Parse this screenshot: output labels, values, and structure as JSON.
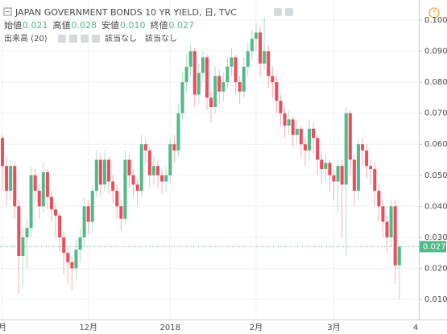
{
  "chart_data": {
    "type": "candlestick",
    "title": "JAPAN GOVERNMENT BONDS 10 YR YIELD, 日, TVC",
    "legend": [
      {
        "label": "始値",
        "value": 0.021
      },
      {
        "label": "高値",
        "value": 0.028
      },
      {
        "label": "安値",
        "value": {
          "value": 0.01,
          "label": "0.010"
        }
      },
      {
        "label": "終値",
        "value": 0.027
      }
    ],
    "indicator": {
      "name": "出来高 (20)",
      "values": [
        "該当なし",
        "該当なし"
      ]
    },
    "up_color": "#53b987",
    "down_color": "#eb4d5c",
    "categories": [
      "月",
      null,
      null,
      null,
      null,
      null,
      null,
      null,
      null,
      null,
      null,
      null,
      null,
      null,
      null,
      null,
      null,
      null,
      null,
      null,
      null,
      "12月",
      null,
      null,
      null,
      null,
      null,
      null,
      null,
      null,
      null,
      null,
      null,
      null,
      null,
      null,
      null,
      null,
      null,
      null,
      null,
      "2018",
      null,
      null,
      null,
      null,
      null,
      null,
      null,
      null,
      null,
      null,
      null,
      null,
      null,
      null,
      null,
      null,
      null,
      null,
      null,
      null,
      "2月",
      null,
      null,
      null,
      null,
      null,
      null,
      null,
      null,
      null,
      null,
      null,
      null,
      null,
      null,
      null,
      null,
      null,
      null,
      "3月",
      null,
      null,
      null,
      null,
      null,
      null,
      null,
      null,
      null,
      null,
      null,
      null,
      null,
      null,
      null,
      null
    ],
    "x_edge_label": "4",
    "open": [
      0.062,
      0.053,
      0.045,
      0.053,
      0.04,
      0.024,
      0.03,
      0.033,
      0.05,
      0.045,
      0.04,
      0.051,
      0.043,
      0.039,
      0.037,
      0.03,
      0.025,
      0.022,
      0.02,
      0.026,
      0.03,
      0.04,
      0.035,
      0.045,
      0.055,
      0.047,
      0.055,
      0.048,
      0.045,
      0.04,
      0.036,
      0.055,
      0.05,
      0.047,
      0.045,
      0.06,
      0.058,
      0.05,
      0.053,
      0.05,
      0.048,
      0.05,
      0.06,
      0.058,
      0.07,
      0.08,
      0.085,
      0.09,
      0.076,
      0.083,
      0.088,
      0.075,
      0.072,
      0.082,
      0.077,
      0.08,
      0.085,
      0.088,
      0.08,
      0.077,
      0.085,
      0.09,
      0.094,
      0.096,
      0.086,
      0.09,
      0.082,
      0.08,
      0.074,
      0.07,
      0.066,
      0.068,
      0.063,
      0.065,
      0.06,
      0.058,
      0.065,
      0.062,
      0.055,
      0.052,
      0.054,
      0.05,
      0.048,
      0.053,
      0.047,
      0.07,
      0.055,
      0.045,
      0.06,
      0.058,
      0.053,
      0.052,
      0.045,
      0.04,
      0.035,
      0.03,
      0.04,
      0.021
    ],
    "high": [
      0.063,
      0.056,
      0.055,
      0.054,
      0.042,
      0.033,
      0.036,
      0.053,
      0.052,
      0.047,
      0.054,
      0.052,
      0.045,
      0.041,
      0.038,
      0.032,
      0.027,
      0.024,
      0.029,
      0.033,
      0.043,
      0.042,
      0.047,
      0.058,
      0.057,
      0.058,
      0.056,
      0.05,
      0.047,
      0.042,
      0.058,
      0.057,
      0.052,
      0.049,
      0.063,
      0.062,
      0.059,
      0.056,
      0.055,
      0.052,
      0.053,
      0.062,
      0.063,
      0.073,
      0.083,
      0.089,
      0.092,
      0.091,
      0.086,
      0.09,
      0.089,
      0.077,
      0.085,
      0.084,
      0.083,
      0.088,
      0.091,
      0.089,
      0.082,
      0.088,
      0.093,
      0.097,
      0.099,
      0.098,
      0.101,
      0.092,
      0.085,
      0.082,
      0.076,
      0.072,
      0.071,
      0.069,
      0.068,
      0.066,
      0.062,
      0.068,
      0.067,
      0.063,
      0.057,
      0.057,
      0.055,
      0.052,
      0.055,
      0.055,
      0.072,
      0.071,
      0.057,
      0.062,
      0.062,
      0.06,
      0.055,
      0.054,
      0.047,
      0.042,
      0.037,
      0.042,
      0.042,
      0.028
    ],
    "low": [
      0.045,
      0.04,
      0.042,
      0.036,
      0.012,
      0.014,
      0.02,
      0.03,
      0.041,
      0.036,
      0.038,
      0.039,
      0.035,
      0.03,
      0.025,
      0.018,
      0.015,
      0.013,
      0.016,
      0.022,
      0.027,
      0.031,
      0.032,
      0.043,
      0.043,
      0.045,
      0.044,
      0.041,
      0.036,
      0.032,
      0.034,
      0.046,
      0.043,
      0.04,
      0.043,
      0.054,
      0.046,
      0.047,
      0.046,
      0.044,
      0.045,
      0.048,
      0.054,
      0.056,
      0.068,
      0.077,
      0.082,
      0.072,
      0.073,
      0.08,
      0.071,
      0.067,
      0.07,
      0.073,
      0.074,
      0.078,
      0.082,
      0.076,
      0.073,
      0.075,
      0.082,
      0.087,
      0.09,
      0.082,
      0.084,
      0.078,
      0.075,
      0.07,
      0.066,
      0.062,
      0.063,
      0.059,
      0.06,
      0.056,
      0.053,
      0.055,
      0.057,
      0.05,
      0.047,
      0.048,
      0.045,
      0.042,
      0.038,
      0.03,
      0.024,
      0.05,
      0.04,
      0.042,
      0.053,
      0.049,
      0.047,
      0.04,
      0.035,
      0.03,
      0.025,
      0.027,
      0.015,
      0.01
    ],
    "close": [
      0.053,
      0.045,
      0.053,
      0.04,
      0.024,
      0.03,
      0.033,
      0.05,
      0.045,
      0.04,
      0.051,
      0.043,
      0.039,
      0.037,
      0.03,
      0.025,
      0.022,
      0.02,
      0.026,
      0.03,
      0.04,
      0.035,
      0.045,
      0.055,
      0.047,
      0.055,
      0.048,
      0.045,
      0.04,
      0.036,
      0.055,
      0.05,
      0.047,
      0.045,
      0.06,
      0.058,
      0.05,
      0.053,
      0.05,
      0.048,
      0.05,
      0.06,
      0.058,
      0.07,
      0.08,
      0.085,
      0.09,
      0.076,
      0.083,
      0.088,
      0.075,
      0.072,
      0.082,
      0.077,
      0.08,
      0.085,
      0.088,
      0.08,
      0.077,
      0.085,
      0.09,
      0.094,
      0.096,
      0.086,
      0.09,
      0.082,
      0.08,
      0.074,
      0.07,
      0.066,
      0.068,
      0.063,
      0.065,
      0.06,
      0.058,
      0.065,
      0.062,
      0.055,
      0.052,
      0.054,
      0.05,
      0.048,
      0.053,
      0.047,
      0.07,
      0.055,
      0.045,
      0.06,
      0.058,
      0.053,
      0.052,
      0.045,
      0.04,
      0.035,
      0.03,
      0.04,
      0.021,
      0.027
    ],
    "ylim": [
      0.0035,
      0.1065
    ],
    "yticks": [
      {
        "value": 0.01,
        "label": "0.010"
      },
      {
        "value": 0.02,
        "label": "0.020"
      },
      {
        "value": 0.03,
        "label": "0.030"
      },
      {
        "value": 0.04,
        "label": "0.040"
      },
      {
        "value": 0.05,
        "label": "0.050"
      },
      {
        "value": 0.06,
        "label": "0.060"
      },
      {
        "value": 0.07,
        "label": "0.070"
      },
      {
        "value": 0.08,
        "label": "0.080"
      },
      {
        "value": 0.09,
        "label": "0.090"
      },
      {
        "value": 0.1,
        "label": "0.100"
      }
    ],
    "grid": true
  }
}
